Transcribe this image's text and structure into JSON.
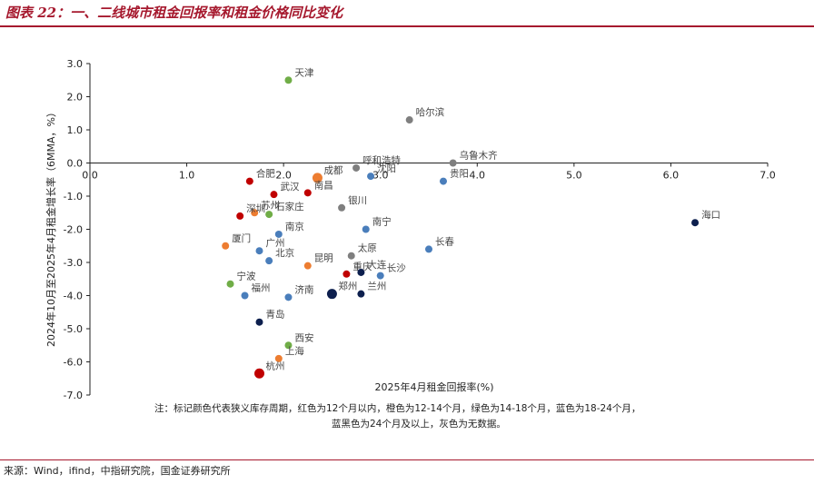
{
  "figure_title": "图表 22：一、二线城市租金回报率和租金价格同比变化",
  "source": "来源：Wind，ifind，中指研究院，国金证券研究所",
  "note_lines": [
    "注：标记颜色代表狭义库存周期，红色为12个月以内，橙色为12-14个月，绿色为14-18个月，蓝色为18-24个月，",
    "蓝黑色为24个月及以上，灰色为无数据。"
  ],
  "colors": {
    "red": "#c00000",
    "orange": "#ed7d31",
    "green": "#70ad47",
    "blue": "#4a7ebb",
    "navy": "#0d1f4e",
    "gray": "#7f7f7f"
  },
  "chart_data": {
    "type": "scatter",
    "title": "",
    "xlabel": "2025年4月租金回报率(%)",
    "ylabel": "2024年10月至2025年4月租金增长率（6MMA，%）",
    "xlim": [
      0,
      7
    ],
    "ylim": [
      -7,
      3
    ],
    "x_ticks": [
      "0.0",
      "1.0",
      "2.0",
      "3.0",
      "4.0",
      "5.0",
      "6.0",
      "7.0"
    ],
    "y_ticks": [
      "3.0",
      "2.0",
      "1.0",
      "0.0",
      "-1.0",
      "-2.0",
      "-3.0",
      "-4.0",
      "-5.0",
      "-6.0",
      "-7.0"
    ],
    "grid": false,
    "points": [
      {
        "name": "天津",
        "x": 2.05,
        "y": 2.5,
        "color": "green"
      },
      {
        "name": "哈尔滨",
        "x": 3.3,
        "y": 1.3,
        "color": "gray"
      },
      {
        "name": "乌鲁木齐",
        "x": 3.75,
        "y": 0.0,
        "color": "gray"
      },
      {
        "name": "呼和浩特",
        "x": 2.75,
        "y": -0.15,
        "color": "gray"
      },
      {
        "name": "成都",
        "x": 2.35,
        "y": -0.45,
        "color": "orange"
      },
      {
        "name": "合肥",
        "x": 1.65,
        "y": -0.55,
        "color": "red"
      },
      {
        "name": "贵阳",
        "x": 3.65,
        "y": -0.55,
        "color": "blue"
      },
      {
        "name": "沈阳",
        "x": 2.9,
        "y": -0.4,
        "color": "blue"
      },
      {
        "name": "武汉",
        "x": 1.9,
        "y": -0.95,
        "color": "red"
      },
      {
        "name": "南昌",
        "x": 2.25,
        "y": -0.9,
        "color": "red"
      },
      {
        "name": "银川",
        "x": 2.6,
        "y": -1.35,
        "color": "gray"
      },
      {
        "name": "苏州",
        "x": 1.7,
        "y": -1.5,
        "color": "orange"
      },
      {
        "name": "深圳",
        "x": 1.55,
        "y": -1.6,
        "color": "red"
      },
      {
        "name": "石家庄",
        "x": 1.85,
        "y": -1.55,
        "color": "green"
      },
      {
        "name": "南京",
        "x": 1.95,
        "y": -2.15,
        "color": "blue"
      },
      {
        "name": "广州",
        "x": 1.75,
        "y": -2.65,
        "color": "blue"
      },
      {
        "name": "南宁",
        "x": 2.85,
        "y": -2.0,
        "color": "blue"
      },
      {
        "name": "厦门",
        "x": 1.4,
        "y": -2.5,
        "color": "orange"
      },
      {
        "name": "长春",
        "x": 3.5,
        "y": -2.6,
        "color": "blue"
      },
      {
        "name": "太原",
        "x": 2.7,
        "y": -2.8,
        "color": "gray"
      },
      {
        "name": "北京",
        "x": 1.85,
        "y": -2.95,
        "color": "blue"
      },
      {
        "name": "昆明",
        "x": 2.25,
        "y": -3.1,
        "color": "orange"
      },
      {
        "name": "重庆",
        "x": 2.65,
        "y": -3.35,
        "color": "red"
      },
      {
        "name": "大连",
        "x": 2.8,
        "y": -3.3,
        "color": "navy"
      },
      {
        "name": "长沙",
        "x": 3.0,
        "y": -3.4,
        "color": "blue"
      },
      {
        "name": "宁波",
        "x": 1.45,
        "y": -3.65,
        "color": "green"
      },
      {
        "name": "福州",
        "x": 1.6,
        "y": -4.0,
        "color": "blue"
      },
      {
        "name": "济南",
        "x": 2.05,
        "y": -4.05,
        "color": "blue"
      },
      {
        "name": "郑州",
        "x": 2.5,
        "y": -3.95,
        "color": "navy"
      },
      {
        "name": "兰州",
        "x": 2.8,
        "y": -3.95,
        "color": "navy"
      },
      {
        "name": "青岛",
        "x": 1.75,
        "y": -4.8,
        "color": "navy"
      },
      {
        "name": "西安",
        "x": 2.05,
        "y": -5.5,
        "color": "green"
      },
      {
        "name": "上海",
        "x": 1.95,
        "y": -5.9,
        "color": "orange"
      },
      {
        "name": "杭州",
        "x": 1.75,
        "y": -6.35,
        "color": "red"
      },
      {
        "name": "海口",
        "x": 6.25,
        "y": -1.8,
        "color": "navy"
      }
    ]
  }
}
